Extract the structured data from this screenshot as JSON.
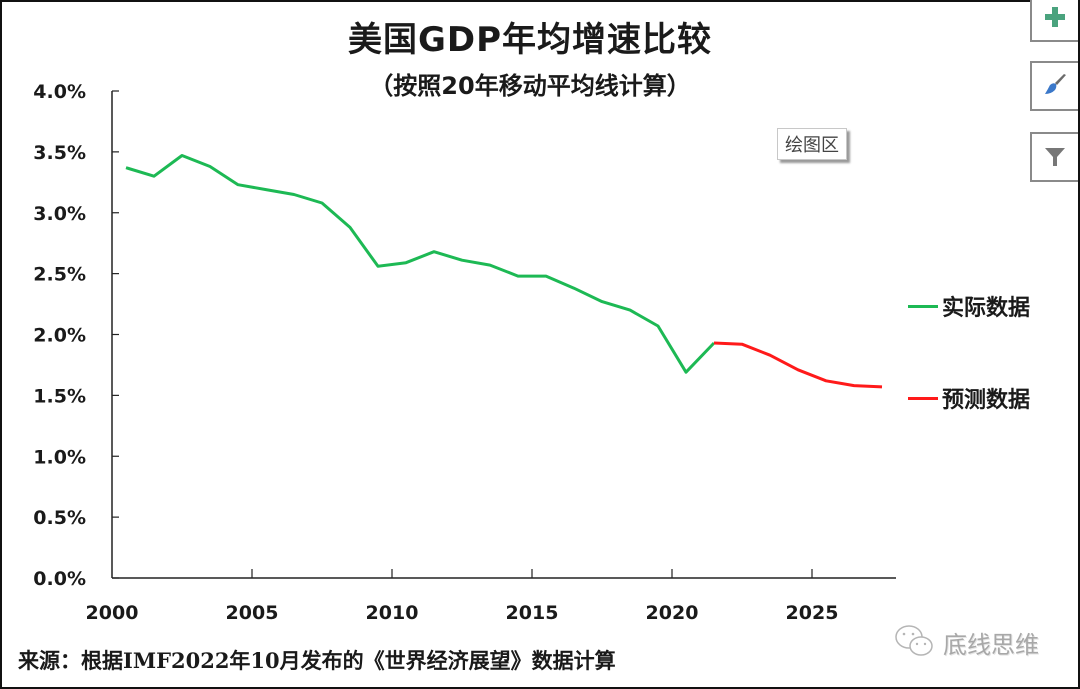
{
  "chart_data": {
    "type": "line",
    "title": "美国GDP年均增速比较",
    "subtitle": "（按照20年移动平均线计算）",
    "xlabel": "",
    "ylabel": "",
    "x": [
      2000,
      2001,
      2002,
      2003,
      2004,
      2005,
      2006,
      2007,
      2008,
      2009,
      2010,
      2011,
      2012,
      2013,
      2014,
      2015,
      2016,
      2017,
      2018,
      2019,
      2020,
      2021,
      2022,
      2023,
      2024,
      2025,
      2026,
      2027
    ],
    "xlim": [
      2000,
      2028
    ],
    "ylim": [
      0.0,
      4.0
    ],
    "y_ticks": [
      "0.0%",
      "0.5%",
      "1.0%",
      "1.5%",
      "2.0%",
      "2.5%",
      "3.0%",
      "3.5%",
      "4.0%"
    ],
    "y_tick_values": [
      0.0,
      0.5,
      1.0,
      1.5,
      2.0,
      2.5,
      3.0,
      3.5,
      4.0
    ],
    "x_ticks": [
      "2000",
      "2005",
      "2010",
      "2015",
      "2020",
      "2025"
    ],
    "x_tick_values": [
      2000,
      2005,
      2010,
      2015,
      2020,
      2025
    ],
    "grid": false,
    "legend_position": "right",
    "series": [
      {
        "name": "实际数据",
        "color": "#1db954",
        "x": [
          2000,
          2001,
          2002,
          2003,
          2004,
          2005,
          2006,
          2007,
          2008,
          2009,
          2010,
          2011,
          2012,
          2013,
          2014,
          2015,
          2016,
          2017,
          2018,
          2019,
          2020,
          2021
        ],
        "values": [
          3.37,
          3.3,
          3.47,
          3.38,
          3.23,
          3.19,
          3.15,
          3.08,
          2.88,
          2.56,
          2.59,
          2.68,
          2.61,
          2.57,
          2.48,
          2.48,
          2.38,
          2.27,
          2.2,
          2.07,
          1.69,
          1.93
        ]
      },
      {
        "name": "预测数据",
        "color": "#ff1a1a",
        "x": [
          2021,
          2022,
          2023,
          2024,
          2025,
          2026,
          2027
        ],
        "values": [
          1.93,
          1.92,
          1.83,
          1.71,
          1.62,
          1.58,
          1.57
        ]
      }
    ]
  },
  "ui": {
    "plot_area_tooltip": "绘图区",
    "buttons": [
      {
        "name": "chart-elements",
        "icon": "plus-icon"
      },
      {
        "name": "chart-styles",
        "icon": "brush-icon"
      },
      {
        "name": "chart-filters",
        "icon": "filter-icon"
      }
    ],
    "accent_plus": "#4aa37e",
    "accent_brush": "#3b78c9"
  },
  "footer": {
    "source": "来源：根据IMF2022年10月发布的《世界经济展望》数据计算",
    "watermark": "底线思维"
  }
}
